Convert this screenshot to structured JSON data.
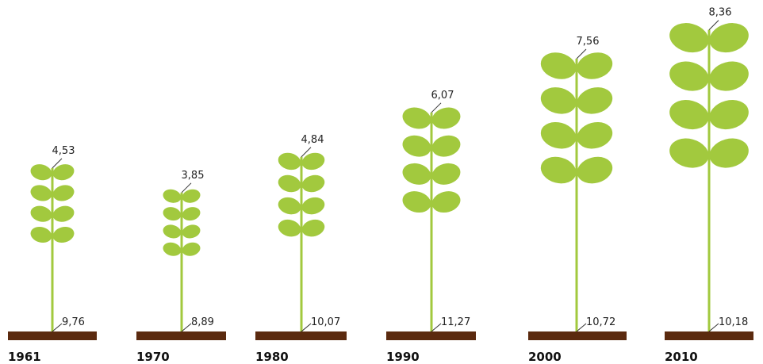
{
  "chart_data": {
    "type": "pictogram",
    "categories": [
      "1961",
      "1970",
      "1980",
      "1990",
      "2000",
      "2010"
    ],
    "series": [
      {
        "color": "#a2c93e",
        "values": [
          4.53,
          3.85,
          4.84,
          6.07,
          7.56,
          8.36
        ],
        "value_labels": [
          "4,53",
          "3,85",
          "4,84",
          "6,07",
          "7,56",
          "8,36"
        ]
      },
      {
        "color": "#5b2a0f",
        "values": [
          9.76,
          8.89,
          10.07,
          11.27,
          10.72,
          10.18
        ],
        "value_labels": [
          "9,76",
          "8,89",
          "10,07",
          "11,27",
          "10,72",
          "10,18"
        ]
      }
    ]
  }
}
